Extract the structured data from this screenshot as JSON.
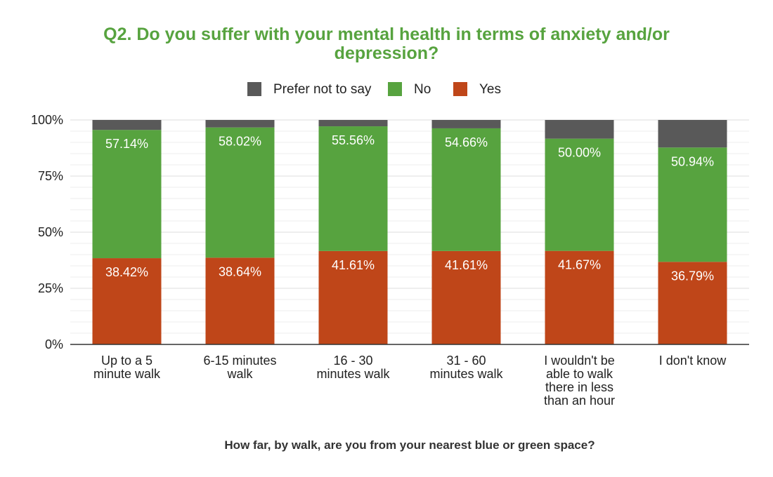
{
  "chart_data": {
    "type": "bar",
    "stacked": true,
    "percent_stacked": true,
    "title_lines": [
      "Q2. Do you suffer with your mental health in terms of anxiety and/or",
      "depression?"
    ],
    "xlabel": "How far, by walk, are you from your nearest blue or green space?",
    "ylabel": "",
    "ylim": [
      0,
      100
    ],
    "y_ticks": [
      "0%",
      "25%",
      "50%",
      "75%",
      "100%"
    ],
    "y_tick_values": [
      0,
      25,
      50,
      75,
      100
    ],
    "grid": true,
    "legend_position": "top",
    "categories": [
      [
        "Up to a 5",
        "minute walk"
      ],
      [
        "6-15 minutes",
        "walk"
      ],
      [
        "16 - 30",
        "minutes walk"
      ],
      [
        "31 - 60",
        "minutes walk"
      ],
      [
        "I wouldn't be",
        "able to walk",
        "there in less",
        "than an hour"
      ],
      [
        "I don't know"
      ]
    ],
    "series": [
      {
        "name": "Yes",
        "color": "#bf4619",
        "values": [
          38.42,
          38.64,
          41.61,
          41.61,
          41.67,
          36.79
        ],
        "labels": [
          "38.42%",
          "38.64%",
          "41.61%",
          "41.61%",
          "41.67%",
          "36.79%"
        ]
      },
      {
        "name": "No",
        "color": "#57a33f",
        "values": [
          57.14,
          58.02,
          55.56,
          54.66,
          50.0,
          50.94
        ],
        "labels": [
          "57.14%",
          "58.02%",
          "55.56%",
          "54.66%",
          "50.00%",
          "50.94%"
        ]
      },
      {
        "name": "Prefer not to say",
        "color": "#595959",
        "values": [
          4.44,
          3.34,
          2.83,
          3.73,
          8.33,
          12.27
        ],
        "labels": []
      }
    ],
    "legend_order": [
      "Prefer not to say",
      "No",
      "Yes"
    ]
  }
}
